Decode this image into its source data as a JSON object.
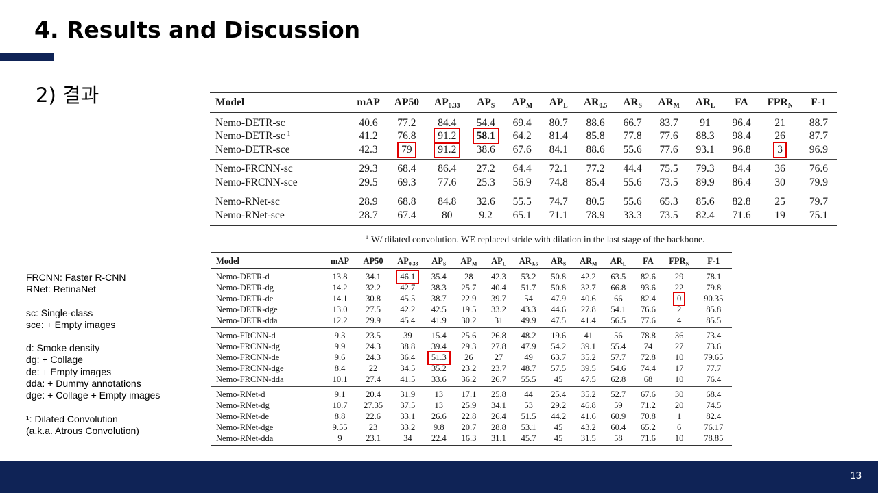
{
  "slide": {
    "title": "4. Results and Discussion",
    "subtitle": "2) 결과",
    "page_number": "13",
    "accent_color": "#0f2356"
  },
  "notes": {
    "groups": [
      [
        "FRCNN: Faster R-CNN",
        "RNet: RetinaNet"
      ],
      [
        "sc: Single-class",
        "sce: + Empty images"
      ],
      [
        "d: Smoke density",
        "dg: + Collage",
        "de: + Empty images",
        "dda: + Dummy annotations",
        "dge: + Collage + Empty images"
      ],
      [
        "¹: Dilated Convolution",
        "(a.k.a. Atrous Convolution)"
      ]
    ]
  },
  "table1": {
    "headers": [
      "Model",
      "mAP",
      "AP50",
      "AP",
      "0.33",
      "AP",
      "S",
      "AP",
      "M",
      "AP",
      "L",
      "AR",
      "0.5",
      "AR",
      "S",
      "AR",
      "M",
      "AR",
      "L",
      "FA",
      "FPR",
      "N",
      "F-1"
    ],
    "header_cells": [
      {
        "main": "Model"
      },
      {
        "main": "mAP"
      },
      {
        "main": "AP50"
      },
      {
        "main": "AP",
        "sub": "0.33"
      },
      {
        "main": "AP",
        "sub": "S"
      },
      {
        "main": "AP",
        "sub": "M"
      },
      {
        "main": "AP",
        "sub": "L"
      },
      {
        "main": "AR",
        "sub": "0.5"
      },
      {
        "main": "AR",
        "sub": "S"
      },
      {
        "main": "AR",
        "sub": "M"
      },
      {
        "main": "AR",
        "sub": "L"
      },
      {
        "main": "FA"
      },
      {
        "main": "FPR",
        "sub": "N"
      },
      {
        "main": "F-1"
      }
    ],
    "groups": [
      [
        {
          "model": "Nemo-DETR-sc",
          "values": [
            "40.6",
            "77.2",
            "84.4",
            "54.4",
            "69.4",
            "80.7",
            "88.6",
            "66.7",
            "83.7",
            "91",
            "96.4",
            "21",
            "88.7"
          ]
        },
        {
          "model": "Nemo-DETR-sc",
          "sup": "1",
          "values": [
            "41.2",
            "76.8",
            "91.2",
            "58.1",
            "64.2",
            "81.4",
            "85.8",
            "77.8",
            "77.6",
            "88.3",
            "98.4",
            "26",
            "87.7"
          ]
        },
        {
          "model": "Nemo-DETR-sce",
          "values": [
            "42.3",
            "79",
            "91.2",
            "38.6",
            "67.6",
            "84.1",
            "88.6",
            "55.6",
            "77.6",
            "93.1",
            "96.8",
            "3",
            "96.9"
          ]
        }
      ],
      [
        {
          "model": "Nemo-FRCNN-sc",
          "values": [
            "29.3",
            "68.4",
            "86.4",
            "27.2",
            "64.4",
            "72.1",
            "77.2",
            "44.4",
            "75.5",
            "79.3",
            "84.4",
            "36",
            "76.6"
          ]
        },
        {
          "model": "Nemo-FRCNN-sce",
          "values": [
            "29.5",
            "69.3",
            "77.6",
            "25.3",
            "56.9",
            "74.8",
            "85.4",
            "55.6",
            "73.5",
            "89.9",
            "86.4",
            "30",
            "79.9"
          ]
        }
      ],
      [
        {
          "model": "Nemo-RNet-sc",
          "values": [
            "28.9",
            "68.8",
            "84.8",
            "32.6",
            "55.5",
            "74.7",
            "80.5",
            "55.6",
            "65.3",
            "85.6",
            "82.8",
            "25",
            "79.7"
          ]
        },
        {
          "model": "Nemo-RNet-sce",
          "values": [
            "28.7",
            "67.4",
            "80",
            "9.2",
            "65.1",
            "71.1",
            "78.9",
            "33.3",
            "73.5",
            "82.4",
            "71.6",
            "19",
            "75.1"
          ]
        }
      ]
    ],
    "footnote_marker": "1",
    "footnote": "W/ dilated convolution. WE replaced stride with dilation in the last stage of the backbone."
  },
  "table2": {
    "header_cells": [
      {
        "main": "Model"
      },
      {
        "main": "mAP"
      },
      {
        "main": "AP50"
      },
      {
        "main": "AP",
        "sub": "0.33"
      },
      {
        "main": "AP",
        "sub": "S"
      },
      {
        "main": "AP",
        "sub": "M"
      },
      {
        "main": "AP",
        "sub": "L"
      },
      {
        "main": "AR",
        "sub": "0.5"
      },
      {
        "main": "AR",
        "sub": "S"
      },
      {
        "main": "AR",
        "sub": "M"
      },
      {
        "main": "AR",
        "sub": "L"
      },
      {
        "main": "FA"
      },
      {
        "main": "FPR",
        "sub": "N"
      },
      {
        "main": "F-1"
      }
    ],
    "groups": [
      [
        {
          "model": "Nemo-DETR-d",
          "values": [
            "13.8",
            "34.1",
            "46.1",
            "35.4",
            "28",
            "42.3",
            "53.2",
            "50.8",
            "42.2",
            "63.5",
            "82.6",
            "29",
            "78.1"
          ]
        },
        {
          "model": "Nemo-DETR-dg",
          "values": [
            "14.2",
            "32.2",
            "42.7",
            "38.3",
            "25.7",
            "40.4",
            "51.7",
            "50.8",
            "32.7",
            "66.8",
            "93.6",
            "22",
            "79.8"
          ]
        },
        {
          "model": "Nemo-DETR-de",
          "values": [
            "14.1",
            "30.8",
            "45.5",
            "38.7",
            "22.9",
            "39.7",
            "54",
            "47.9",
            "40.6",
            "66",
            "82.4",
            "0",
            "90.35"
          ]
        },
        {
          "model": "Nemo-DETR-dge",
          "values": [
            "13.0",
            "27.5",
            "42.2",
            "42.5",
            "19.5",
            "33.2",
            "43.3",
            "44.6",
            "27.8",
            "54.1",
            "76.6",
            "2",
            "85.8"
          ]
        },
        {
          "model": "Nemo-DETR-dda",
          "values": [
            "12.2",
            "29.9",
            "45.4",
            "41.9",
            "30.2",
            "31",
            "49.9",
            "47.5",
            "41.4",
            "56.5",
            "77.6",
            "4",
            "85.5"
          ]
        }
      ],
      [
        {
          "model": "Nemo-FRCNN-d",
          "values": [
            "9.3",
            "23.5",
            "39",
            "15.4",
            "25.6",
            "26.8",
            "48.2",
            "19.6",
            "41",
            "56",
            "78.8",
            "36",
            "73.4"
          ]
        },
        {
          "model": "Nemo-FRCNN-dg",
          "values": [
            "9.9",
            "24.3",
            "38.8",
            "39.4",
            "29.3",
            "27.8",
            "47.9",
            "54.2",
            "39.1",
            "55.4",
            "74",
            "27",
            "73.6"
          ]
        },
        {
          "model": "Nemo-FRCNN-de",
          "values": [
            "9.6",
            "24.3",
            "36.4",
            "51.3",
            "26",
            "27",
            "49",
            "63.7",
            "35.2",
            "57.7",
            "72.8",
            "10",
            "79.65"
          ]
        },
        {
          "model": "Nemo-FRCNN-dge",
          "values": [
            "8.4",
            "22",
            "34.5",
            "35.2",
            "23.2",
            "23.7",
            "48.7",
            "57.5",
            "39.5",
            "54.6",
            "74.4",
            "17",
            "77.7"
          ]
        },
        {
          "model": "Nemo-FRCNN-dda",
          "values": [
            "10.1",
            "27.4",
            "41.5",
            "33.6",
            "36.2",
            "26.7",
            "55.5",
            "45",
            "47.5",
            "62.8",
            "68",
            "10",
            "76.4"
          ]
        }
      ],
      [
        {
          "model": "Nemo-RNet-d",
          "values": [
            "9.1",
            "20.4",
            "31.9",
            "13",
            "17.1",
            "25.8",
            "44",
            "25.4",
            "35.2",
            "52.7",
            "67.6",
            "30",
            "68.4"
          ]
        },
        {
          "model": "Nemo-RNet-dg",
          "values": [
            "10.7",
            "27.35",
            "37.5",
            "13",
            "25.9",
            "34.1",
            "53",
            "29.2",
            "46.8",
            "59",
            "71.2",
            "20",
            "74.5"
          ]
        },
        {
          "model": "Nemo-RNet-de",
          "values": [
            "8.8",
            "22.6",
            "33.1",
            "26.6",
            "22.8",
            "26.4",
            "51.5",
            "44.2",
            "41.6",
            "60.9",
            "70.8",
            "1",
            "82.4"
          ]
        },
        {
          "model": "Nemo-RNet-dge",
          "values": [
            "9.55",
            "23",
            "33.2",
            "9.8",
            "20.7",
            "28.8",
            "53.1",
            "45",
            "43.2",
            "60.4",
            "65.2",
            "6",
            "76.17"
          ]
        },
        {
          "model": "Nemo-RNet-dda",
          "values": [
            "9",
            "23.1",
            "34",
            "22.4",
            "16.3",
            "31.1",
            "45.7",
            "45",
            "31.5",
            "58",
            "71.6",
            "10",
            "78.85"
          ]
        }
      ]
    ]
  }
}
